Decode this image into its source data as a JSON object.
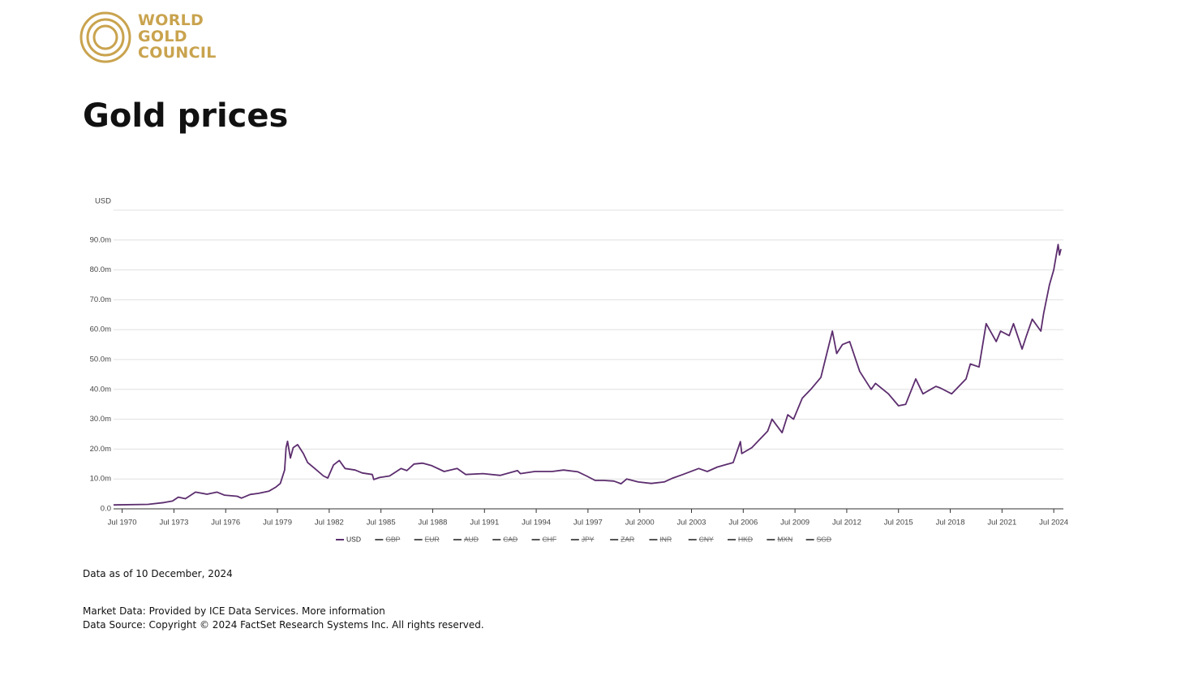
{
  "logo": {
    "lines": [
      "WORLD",
      "GOLD",
      "COUNCIL"
    ]
  },
  "title": "Gold prices",
  "chart_data": {
    "type": "line",
    "y_label": "USD",
    "x": [
      "1970-01",
      "1972-01",
      "1972-12",
      "1973-06",
      "1973-10",
      "1974-03",
      "1974-10",
      "1975-06",
      "1976-01",
      "1976-06",
      "1977-03",
      "1977-06",
      "1977-12",
      "1978-06",
      "1979-01",
      "1979-06",
      "1979-09",
      "1979-12",
      "1980-01",
      "1980-02",
      "1980-04",
      "1980-06",
      "1980-09",
      "1981-01",
      "1981-04",
      "1981-09",
      "1982-03",
      "1982-06",
      "1982-10",
      "1983-02",
      "1983-06",
      "1984-01",
      "1984-06",
      "1985-01",
      "1985-02",
      "1985-06",
      "1986-01",
      "1986-09",
      "1987-01",
      "1987-06",
      "1987-12",
      "1988-06",
      "1989-03",
      "1989-12",
      "1990-06",
      "1991-06",
      "1992-06",
      "1993-06",
      "1993-08",
      "1994-06",
      "1995-06",
      "1996-02",
      "1996-12",
      "1997-06",
      "1997-12",
      "1998-06",
      "1999-01",
      "1999-06",
      "1999-10",
      "2000-06",
      "2001-03",
      "2001-12",
      "2002-06",
      "2003-01",
      "2003-12",
      "2004-06",
      "2005-01",
      "2005-12",
      "2006-05",
      "2006-06",
      "2007-01",
      "2007-12",
      "2008-03",
      "2008-10",
      "2009-02",
      "2009-06",
      "2009-12",
      "2010-06",
      "2011-01",
      "2011-09",
      "2011-12",
      "2012-04",
      "2012-09",
      "2013-04",
      "2013-12",
      "2014-03",
      "2014-12",
      "2015-07",
      "2015-12",
      "2016-07",
      "2016-12",
      "2017-09",
      "2017-12",
      "2018-08",
      "2019-06",
      "2019-09",
      "2020-03",
      "2020-08",
      "2021-03",
      "2021-06",
      "2021-12",
      "2022-03",
      "2022-09",
      "2022-12",
      "2023-04",
      "2023-10",
      "2023-12",
      "2024-04",
      "2024-07",
      "2024-10",
      "2024-11",
      "2024-12"
    ],
    "series": [
      {
        "name": "USD",
        "color": "#5c2d6e",
        "visible": true,
        "values": [
          1.3,
          1.5,
          2.1,
          2.6,
          3.9,
          3.4,
          5.6,
          4.9,
          5.6,
          4.6,
          4.2,
          3.6,
          4.8,
          5.2,
          5.9,
          7.3,
          8.5,
          13,
          20.5,
          22.6,
          17,
          20.5,
          21.5,
          18.5,
          15.5,
          13.5,
          11,
          10.3,
          14.7,
          16.2,
          13.5,
          13,
          12,
          11.5,
          9.8,
          10.5,
          11,
          13.5,
          12.8,
          15,
          15.3,
          14.5,
          12.5,
          13.5,
          11.5,
          11.8,
          11.2,
          12.8,
          11.8,
          12.5,
          12.5,
          13,
          12.4,
          11,
          9.5,
          9.5,
          9.3,
          8.4,
          10,
          9,
          8.5,
          9,
          10.3,
          11.5,
          13.5,
          12.5,
          14,
          15.5,
          22.5,
          18.5,
          20.5,
          26,
          30,
          25.5,
          31.5,
          30,
          37,
          40,
          44,
          59.5,
          52,
          55,
          56,
          46,
          40,
          42,
          38.5,
          34.5,
          35,
          43.5,
          38.5,
          41,
          40.5,
          38.5,
          43.5,
          48.5,
          47.5,
          62,
          56,
          59.5,
          58,
          62,
          53.5,
          58,
          63.5,
          59.5,
          65.5,
          75,
          80,
          88.5,
          85,
          87
        ]
      },
      {
        "name": "GBP",
        "color": "#555555",
        "visible": false
      },
      {
        "name": "EUR",
        "color": "#555555",
        "visible": false
      },
      {
        "name": "AUD",
        "color": "#555555",
        "visible": false
      },
      {
        "name": "CAD",
        "color": "#555555",
        "visible": false
      },
      {
        "name": "CHF",
        "color": "#555555",
        "visible": false
      },
      {
        "name": "JPY",
        "color": "#555555",
        "visible": false
      },
      {
        "name": "ZAR",
        "color": "#555555",
        "visible": false
      },
      {
        "name": "INR",
        "color": "#555555",
        "visible": false
      },
      {
        "name": "CNY",
        "color": "#555555",
        "visible": false
      },
      {
        "name": "HKD",
        "color": "#555555",
        "visible": false
      },
      {
        "name": "MXN",
        "color": "#555555",
        "visible": false
      },
      {
        "name": "SGD",
        "color": "#555555",
        "visible": false
      }
    ],
    "xlim": [
      "1970-01",
      "2024-12"
    ],
    "xticks": [
      {
        "value": "1970-07",
        "label": "Jul 1970"
      },
      {
        "value": "1973-07",
        "label": "Jul 1973"
      },
      {
        "value": "1976-07",
        "label": "Jul 1976"
      },
      {
        "value": "1979-07",
        "label": "Jul 1979"
      },
      {
        "value": "1982-07",
        "label": "Jul 1982"
      },
      {
        "value": "1985-07",
        "label": "Jul 1985"
      },
      {
        "value": "1988-07",
        "label": "Jul 1988"
      },
      {
        "value": "1991-07",
        "label": "Jul 1991"
      },
      {
        "value": "1994-07",
        "label": "Jul 1994"
      },
      {
        "value": "1997-07",
        "label": "Jul 1997"
      },
      {
        "value": "2000-07",
        "label": "Jul 2000"
      },
      {
        "value": "2003-07",
        "label": "Jul 2003"
      },
      {
        "value": "2006-07",
        "label": "Jul 2006"
      },
      {
        "value": "2009-07",
        "label": "Jul 2009"
      },
      {
        "value": "2012-07",
        "label": "Jul 2012"
      },
      {
        "value": "2015-07",
        "label": "Jul 2015"
      },
      {
        "value": "2018-07",
        "label": "Jul 2018"
      },
      {
        "value": "2021-07",
        "label": "Jul 2021"
      },
      {
        "value": "2024-07",
        "label": "Jul 2024"
      }
    ],
    "ylim": [
      0,
      100
    ],
    "yticks": [
      {
        "value": 0,
        "label": "0.0"
      },
      {
        "value": 10,
        "label": "10.0m"
      },
      {
        "value": 20,
        "label": "20.0m"
      },
      {
        "value": 30,
        "label": "30.0m"
      },
      {
        "value": 40,
        "label": "40.0m"
      },
      {
        "value": 50,
        "label": "50.0m"
      },
      {
        "value": 60,
        "label": "60.0m"
      },
      {
        "value": 70,
        "label": "70.0m"
      },
      {
        "value": 80,
        "label": "80.0m"
      },
      {
        "value": 90,
        "label": "90.0m"
      }
    ],
    "grid": true,
    "legend": "bottom"
  },
  "footer": {
    "data_as_of": "Data as of 10 December, 2024",
    "market_data": "Market Data: Provided by ICE Data Services.",
    "more_information": "More information",
    "data_source": "Data Source: Copyright © 2024 FactSet Research Systems Inc. All rights reserved."
  }
}
